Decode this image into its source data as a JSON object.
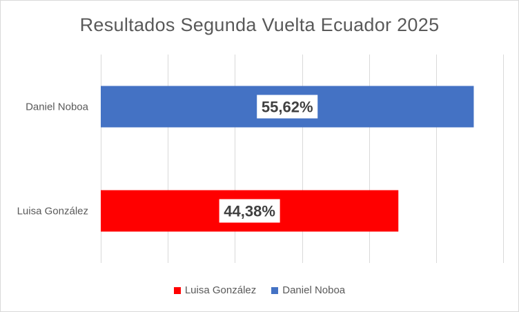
{
  "chart_data": {
    "type": "bar",
    "orientation": "horizontal",
    "title": "Resultados Segunda Vuelta Ecuador 2025",
    "categories": [
      "Daniel Noboa",
      "Luisa González"
    ],
    "values": [
      55.62,
      44.38
    ],
    "data_labels": [
      "55,62%",
      "44,38%"
    ],
    "bar_colors": [
      "#4472C4",
      "#FF0000"
    ],
    "xlim": [
      0,
      60
    ],
    "grid": true,
    "legend_position": "bottom",
    "legend": [
      {
        "name": "Luisa González",
        "color": "#FF0000"
      },
      {
        "name": "Daniel Noboa",
        "color": "#4472C4"
      }
    ]
  }
}
